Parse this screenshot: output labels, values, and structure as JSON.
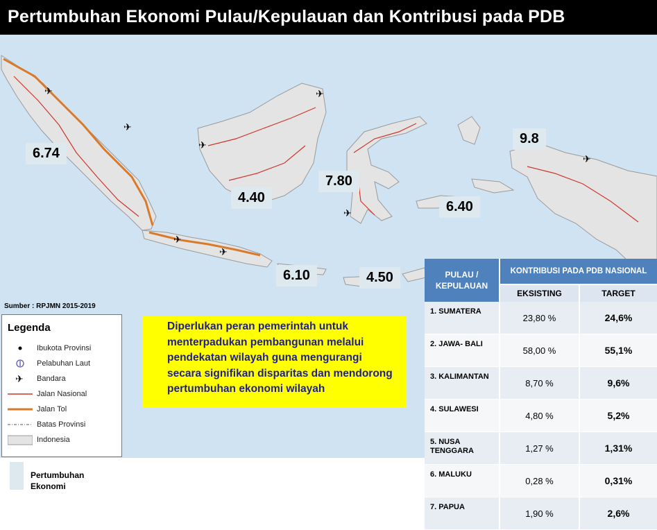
{
  "title": "Pertumbuhan Ekonomi  Pulau/Kepulauan dan Kontribusi pada PDB",
  "growth_labels": [
    {
      "island": "Sumatera",
      "value": "6.74"
    },
    {
      "island": "Kalimantan",
      "value": "4.40"
    },
    {
      "island": "Sulawesi",
      "value": "7.80"
    },
    {
      "island": "Maluku",
      "value": "6.40"
    },
    {
      "island": "Papua",
      "value": "9.8"
    },
    {
      "island": "Jawa-Bali",
      "value": "6.10"
    },
    {
      "island": "Nusa Tenggara",
      "value": "4.50"
    }
  ],
  "source": "Sumber : RPJMN 2015-2019",
  "legend": {
    "title": "Legenda",
    "items": [
      {
        "label": "Ibukota Provinsi",
        "icon": "dot-icon"
      },
      {
        "label": "Pelabuhan Laut",
        "icon": "anchor-icon"
      },
      {
        "label": "Bandara",
        "icon": "airplane-icon"
      },
      {
        "label": "Jalan Nasional",
        "icon": "red-line"
      },
      {
        "label": "Jalan Tol",
        "icon": "orange-line"
      },
      {
        "label": "Batas Provinsi",
        "icon": "dash-line"
      },
      {
        "label": "Indonesia",
        "icon": "grey-box"
      }
    ]
  },
  "note_lines": [
    "Diperlukan peran pemerintah untuk",
    "menterpadukan pembangunan melalui",
    "pendekatan wilayah guna mengurangi",
    "secara signifikan disparitas dan mendorong",
    "pertumbuhan ekonomi wilayah"
  ],
  "bottom_legend": "Pertumbuhan Ekonomi",
  "table": {
    "col_region": "PULAU / KEPULAUAN",
    "col_group": "KONTRIBUSI PADA PDB NASIONAL",
    "col_existing": "EKSISTING",
    "col_target": "TARGET",
    "rows": [
      {
        "name": "1. SUMATERA",
        "existing": "23,80 %",
        "target": "24,6%"
      },
      {
        "name": "2. JAWA- BALI",
        "existing": "58,00 %",
        "target": "55,1%"
      },
      {
        "name": "3. KALIMANTAN",
        "existing": "8,70 %",
        "target": "9,6%"
      },
      {
        "name": "4. SULAWESI",
        "existing": "4,80 %",
        "target": "5,2%"
      },
      {
        "name": "5. NUSA TENGGARA",
        "existing": "1,27 %",
        "target": "1,31%"
      },
      {
        "name": "6. MALUKU",
        "existing": "0,28 %",
        "target": "0,31%"
      },
      {
        "name": "7. PAPUA",
        "existing": "1,90 %",
        "target": "2,6%"
      }
    ]
  },
  "colors": {
    "sea": "#cfe3f2",
    "land": "#e4e4e4",
    "national_road": "#d0342c",
    "toll_road": "#d97a2b",
    "header_blue": "#4f81bd",
    "note_bg": "#ffff00",
    "note_text": "#1f1f8f"
  }
}
